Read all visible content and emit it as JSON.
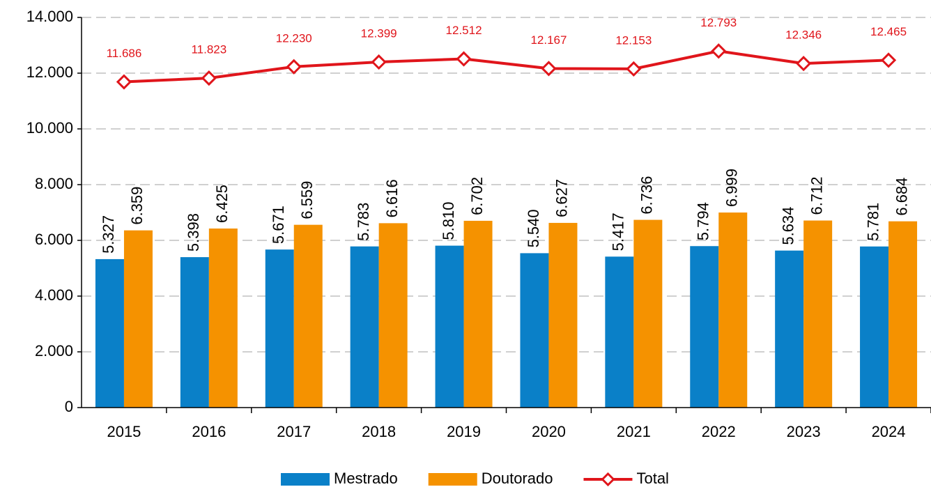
{
  "chart_data": {
    "type": "bar",
    "categories": [
      "2015",
      "2016",
      "2017",
      "2018",
      "2019",
      "2020",
      "2021",
      "2022",
      "2023",
      "2024"
    ],
    "series": [
      {
        "name": "Mestrado",
        "color": "#0a80c8",
        "values": [
          5327,
          5398,
          5671,
          5783,
          5810,
          5540,
          5417,
          5794,
          5634,
          5781
        ],
        "value_labels": [
          "5.327",
          "5.398",
          "5.671",
          "5.783",
          "5.810",
          "5.540",
          "5.417",
          "5.794",
          "5.634",
          "5.781"
        ]
      },
      {
        "name": "Doutorado",
        "color": "#f59200",
        "values": [
          6359,
          6425,
          6559,
          6616,
          6702,
          6627,
          6736,
          6999,
          6712,
          6684
        ],
        "value_labels": [
          "6.359",
          "6.425",
          "6.559",
          "6.616",
          "6.702",
          "6.627",
          "6.736",
          "6.999",
          "6.712",
          "6.684"
        ]
      },
      {
        "name": "Total",
        "type": "line",
        "color": "#e0151b",
        "values": [
          11686,
          11823,
          12230,
          12399,
          12512,
          12167,
          12153,
          12793,
          12346,
          12465
        ],
        "value_labels": [
          "11.686",
          "11.823",
          "12.230",
          "12.399",
          "12.512",
          "12.167",
          "12.153",
          "12.793",
          "12.346",
          "12.465"
        ]
      }
    ],
    "ylim": [
      0,
      14000
    ],
    "yticks": [
      0,
      {
        "value": 2000,
        "label": "2.000"
      },
      {
        "value": 4000,
        "label": "4.000"
      },
      {
        "value": 6000,
        "label": "6.000"
      },
      {
        "value": 8000,
        "label": "8.000"
      },
      {
        "value": 10000,
        "label": "10.000"
      },
      {
        "value": 12000,
        "label": "12.000"
      },
      {
        "value": 14000,
        "label": "14.000"
      }
    ],
    "grid": true,
    "legend": "bottom"
  }
}
